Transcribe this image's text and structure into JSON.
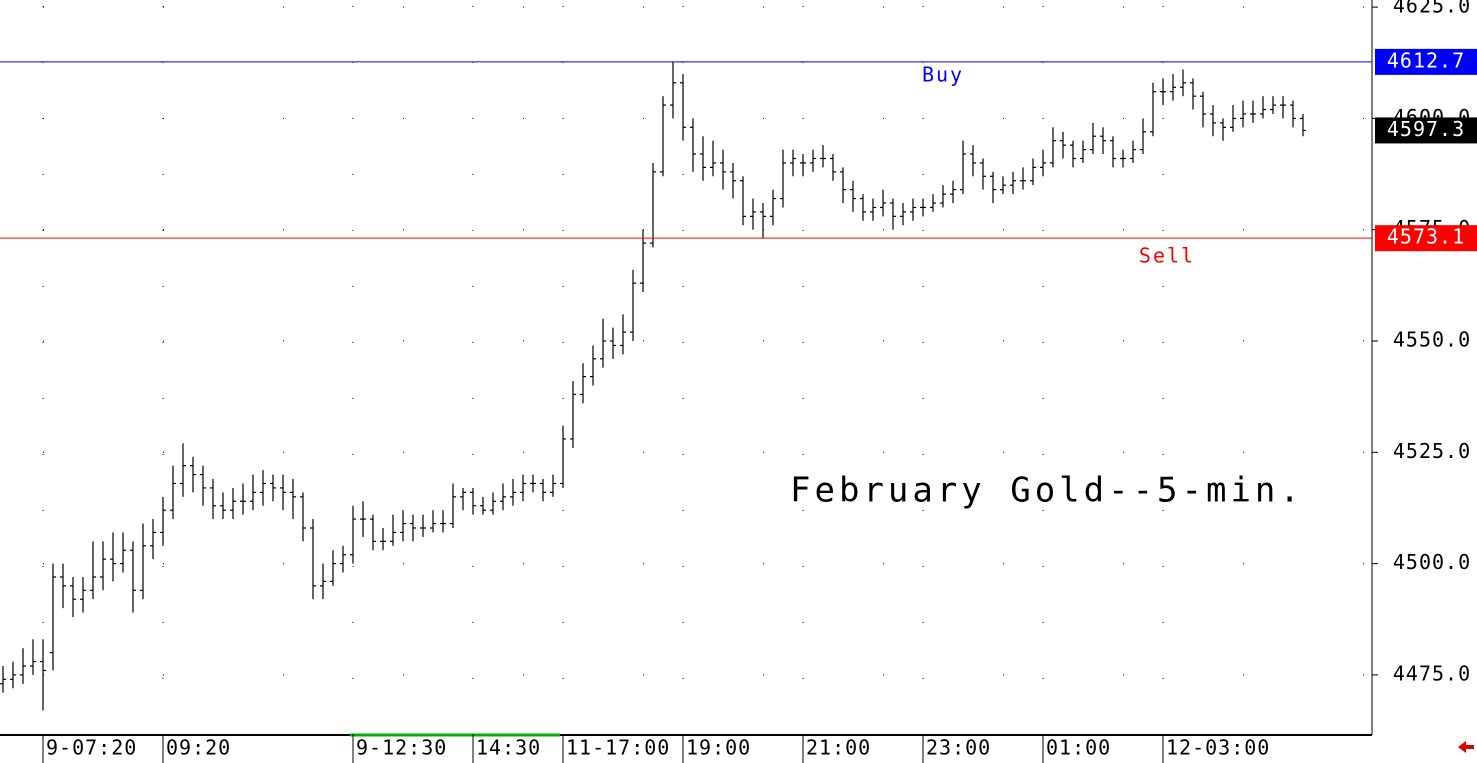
{
  "chart_data": {
    "type": "ohlc",
    "title": "February Gold--5-min.",
    "ylim": [
      4461.5,
      4626.6
    ],
    "yticks": [
      {
        "value": 4475,
        "label": "4475.0"
      },
      {
        "value": 4500,
        "label": "4500.0"
      },
      {
        "value": 4525,
        "label": "4525.0"
      },
      {
        "value": 4550,
        "label": "4550.0"
      },
      {
        "value": 4575,
        "label": "4575.0"
      },
      {
        "value": 4600,
        "label": "4600.0"
      },
      {
        "value": 4625,
        "label": "4625.0"
      }
    ],
    "xticks": [
      {
        "value": 4,
        "label": "9-07:20"
      },
      {
        "value": 16,
        "label": "09:20"
      },
      {
        "value": 35,
        "label": "9-12:30"
      },
      {
        "value": 47,
        "label": "14:30"
      },
      {
        "value": 56,
        "label": "11-17:00"
      },
      {
        "value": 68,
        "label": "19:00"
      },
      {
        "value": 80,
        "label": "21:00"
      },
      {
        "value": 92,
        "label": "23:00"
      },
      {
        "value": 104,
        "label": "01:00"
      },
      {
        "value": 116,
        "label": "12-03:00"
      }
    ],
    "color": "#000000",
    "lines": [
      {
        "label": "Buy",
        "value": 4612.7,
        "color": "#0000ff"
      },
      {
        "label": "Sell",
        "value": 4573.1,
        "color": "#ff0000"
      }
    ],
    "ohlc": [
      [
        4473,
        4477,
        4471,
        4474
      ],
      [
        4474,
        4478,
        4472,
        4475
      ],
      [
        4475,
        4481,
        4473,
        4477
      ],
      [
        4477,
        4483,
        4475,
        4478
      ],
      [
        4478,
        4483,
        4467,
        4476
      ],
      [
        4480,
        4500,
        4476,
        4497
      ],
      [
        4497,
        4500,
        4490,
        4495
      ],
      [
        4495,
        4497,
        4488,
        4492
      ],
      [
        4492,
        4497,
        4489,
        4494
      ],
      [
        4494,
        4505,
        4492,
        4497
      ],
      [
        4497,
        4505,
        4494,
        4501
      ],
      [
        4501,
        4507,
        4496,
        4500
      ],
      [
        4500,
        4507,
        4498,
        4503
      ],
      [
        4503,
        4505,
        4489,
        4494
      ],
      [
        4494,
        4509,
        4492,
        4504
      ],
      [
        4504,
        4510,
        4501,
        4507
      ],
      [
        4507,
        4515,
        4504,
        4512
      ],
      [
        4512,
        4522,
        4510,
        4518
      ],
      [
        4518,
        4527,
        4515,
        4522
      ],
      [
        4522,
        4524,
        4516,
        4520
      ],
      [
        4520,
        4522,
        4513,
        4517
      ],
      [
        4517,
        4519,
        4510,
        4513
      ],
      [
        4513,
        4516,
        4510,
        4512
      ],
      [
        4512,
        4517,
        4510,
        4514
      ],
      [
        4514,
        4518,
        4511,
        4514
      ],
      [
        4514,
        4520,
        4512,
        4516
      ],
      [
        4516,
        4521,
        4513,
        4518
      ],
      [
        4518,
        4520,
        4514,
        4517
      ],
      [
        4517,
        4520,
        4512,
        4516
      ],
      [
        4516,
        4519,
        4510,
        4515
      ],
      [
        4515,
        4516,
        4505,
        4508
      ],
      [
        4508,
        4510,
        4492,
        4495
      ],
      [
        4495,
        4500,
        4492,
        4496
      ],
      [
        4496,
        4503,
        4495,
        4500
      ],
      [
        4500,
        4504,
        4498,
        4502
      ],
      [
        4502,
        4513,
        4500,
        4510
      ],
      [
        4510,
        4514,
        4506,
        4510
      ],
      [
        4510,
        4511,
        4503,
        4505
      ],
      [
        4505,
        4508,
        4503,
        4505
      ],
      [
        4505,
        4511,
        4504,
        4507
      ],
      [
        4507,
        4512,
        4505,
        4509
      ],
      [
        4509,
        4511,
        4505,
        4508
      ],
      [
        4508,
        4511,
        4506,
        4508
      ],
      [
        4508,
        4512,
        4507,
        4509
      ],
      [
        4509,
        4512,
        4507,
        4509
      ],
      [
        4509,
        4518,
        4508,
        4515
      ],
      [
        4515,
        4517,
        4512,
        4516
      ],
      [
        4516,
        4517,
        4511,
        4513
      ],
      [
        4513,
        4515,
        4511,
        4512
      ],
      [
        4512,
        4516,
        4511,
        4514
      ],
      [
        4514,
        4518,
        4512,
        4515
      ],
      [
        4515,
        4519,
        4513,
        4516
      ],
      [
        4516,
        4520,
        4514,
        4518
      ],
      [
        4518,
        4520,
        4516,
        4518
      ],
      [
        4518,
        4519,
        4514,
        4516
      ],
      [
        4516,
        4520,
        4515,
        4518
      ],
      [
        4518,
        4531,
        4517,
        4528
      ],
      [
        4528,
        4541,
        4526,
        4538
      ],
      [
        4538,
        4545,
        4536,
        4542
      ],
      [
        4542,
        4549,
        4540,
        4546
      ],
      [
        4546,
        4555,
        4544,
        4550
      ],
      [
        4550,
        4553,
        4546,
        4549
      ],
      [
        4549,
        4556,
        4547,
        4552
      ],
      [
        4552,
        4566,
        4550,
        4563
      ],
      [
        4563,
        4575,
        4561,
        4572
      ],
      [
        4572,
        4590,
        4571,
        4588
      ],
      [
        4588,
        4605,
        4587,
        4603
      ],
      [
        4603,
        4612.7,
        4600,
        4608
      ],
      [
        4608,
        4610,
        4595,
        4598
      ],
      [
        4598,
        4600,
        4588,
        4592
      ],
      [
        4592,
        4596,
        4586,
        4589
      ],
      [
        4589,
        4595,
        4587,
        4590
      ],
      [
        4590,
        4593,
        4584,
        4588
      ],
      [
        4588,
        4590,
        4582,
        4586
      ],
      [
        4586,
        4587,
        4576,
        4578
      ],
      [
        4578,
        4582,
        4575,
        4579
      ],
      [
        4579,
        4581,
        4573.1,
        4578
      ],
      [
        4578,
        4584,
        4576,
        4582
      ],
      [
        4582,
        4593,
        4580,
        4590
      ],
      [
        4590,
        4593,
        4587,
        4591
      ],
      [
        4590,
        4592,
        4587,
        4590
      ],
      [
        4590,
        4593,
        4588,
        4591
      ],
      [
        4591,
        4594,
        4589,
        4591
      ],
      [
        4591,
        4592,
        4586,
        4588
      ],
      [
        4588,
        4589,
        4581,
        4584
      ],
      [
        4584,
        4586,
        4579,
        4582
      ],
      [
        4582,
        4583,
        4577,
        4579
      ],
      [
        4579,
        4582,
        4577,
        4580
      ],
      [
        4580,
        4584,
        4578,
        4581
      ],
      [
        4581,
        4582,
        4575,
        4578
      ],
      [
        4578,
        4581,
        4576,
        4579
      ],
      [
        4579,
        4582,
        4577,
        4580
      ],
      [
        4580,
        4582,
        4578,
        4580
      ],
      [
        4580,
        4583,
        4579,
        4581
      ],
      [
        4581,
        4585,
        4580,
        4583
      ],
      [
        4583,
        4586,
        4581,
        4584
      ],
      [
        4584,
        4595,
        4583,
        4592
      ],
      [
        4592,
        4594,
        4587,
        4590
      ],
      [
        4590,
        4591,
        4584,
        4587
      ],
      [
        4587,
        4588,
        4581,
        4584
      ],
      [
        4584,
        4587,
        4583,
        4585
      ],
      [
        4585,
        4588,
        4583,
        4586
      ],
      [
        4586,
        4589,
        4584,
        4586
      ],
      [
        4586,
        4591,
        4585,
        4589
      ],
      [
        4589,
        4593,
        4587,
        4590
      ],
      [
        4590,
        4598,
        4589,
        4595
      ],
      [
        4595,
        4597,
        4591,
        4594
      ],
      [
        4594,
        4595,
        4589,
        4591
      ],
      [
        4591,
        4595,
        4590,
        4593
      ],
      [
        4593,
        4599,
        4592,
        4596
      ],
      [
        4596,
        4598,
        4592,
        4595
      ],
      [
        4595,
        4596,
        4589,
        4591
      ],
      [
        4591,
        4593,
        4589,
        4591
      ],
      [
        4591,
        4595,
        4590,
        4593
      ],
      [
        4593,
        4600,
        4592,
        4597
      ],
      [
        4597,
        4608,
        4596,
        4606
      ],
      [
        4606,
        4609,
        4603,
        4606
      ],
      [
        4606,
        4610,
        4604,
        4607
      ],
      [
        4607,
        4611,
        4605,
        4608
      ],
      [
        4608,
        4609,
        4602,
        4605
      ],
      [
        4605,
        4606,
        4598,
        4601
      ],
      [
        4601,
        4603,
        4596,
        4599
      ],
      [
        4599,
        4600,
        4595,
        4598
      ],
      [
        4598,
        4603,
        4597,
        4600
      ],
      [
        4600,
        4604,
        4598,
        4601
      ],
      [
        4601,
        4604,
        4599,
        4601
      ],
      [
        4601,
        4605,
        4600,
        4602
      ],
      [
        4602,
        4605,
        4601,
        4603
      ],
      [
        4603,
        4605,
        4600,
        4603
      ],
      [
        4603,
        4604,
        4598,
        4600
      ],
      [
        4600,
        4601,
        4596,
        4597.3
      ]
    ]
  }
}
